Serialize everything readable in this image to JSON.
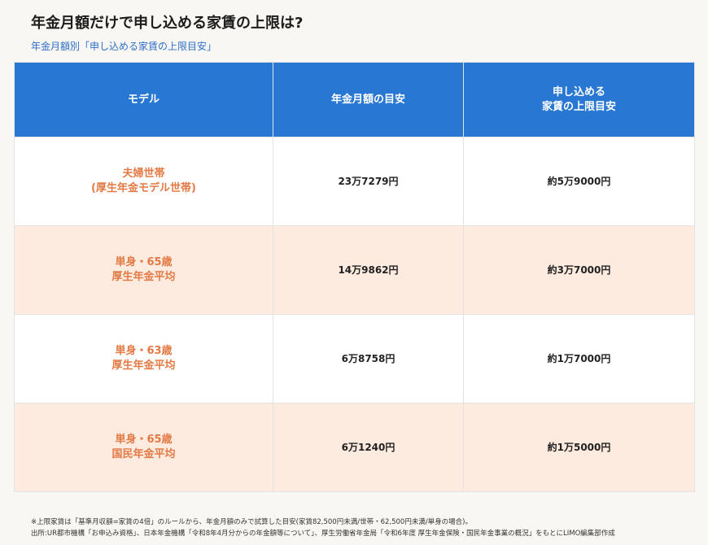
{
  "title": "年金月額だけで申し込める家賃の上限は?",
  "subtitle": "年金月額別「申し込める家賃の上限目安」",
  "colors": {
    "header_bg": "#2877d2",
    "accent_text": "#e37a45",
    "subtitle": "#2f6fc7",
    "stripe": "#fdebdf"
  },
  "table": {
    "headers": [
      {
        "lines": [
          "モデル"
        ]
      },
      {
        "lines": [
          "年金月額の目安"
        ]
      },
      {
        "lines": [
          "申し込める",
          "家賃の上限目安"
        ]
      }
    ],
    "rows": [
      {
        "model": [
          "夫婦世帯",
          "(厚生年金モデル世帯)"
        ],
        "pension": "23万7279円",
        "rent": "約5万9000円"
      },
      {
        "model": [
          "単身・65歳",
          "厚生年金平均"
        ],
        "pension": "14万9862円",
        "rent": "約3万7000円"
      },
      {
        "model": [
          "単身・63歳",
          "厚生年金平均"
        ],
        "pension": "6万8758円",
        "rent": "約1万7000円"
      },
      {
        "model": [
          "単身・65歳",
          "国民年金平均"
        ],
        "pension": "6万1240円",
        "rent": "約1万5000円"
      }
    ]
  },
  "notes": [
    "※上限家賃は「基準月収額=家賃の4倍」のルールから、年金月額のみで試算した目安(家賃82,500円未満/世帯・62,500円未満/単身の場合)。",
    "出所:UR都市機構「お申込み資格」、日本年金機構「令和8年4月分からの年金額等について」、厚生労働省年金局「令和6年度 厚生年金保険・国民年金事業の概況」をもとにLIMO編集部作成"
  ]
}
